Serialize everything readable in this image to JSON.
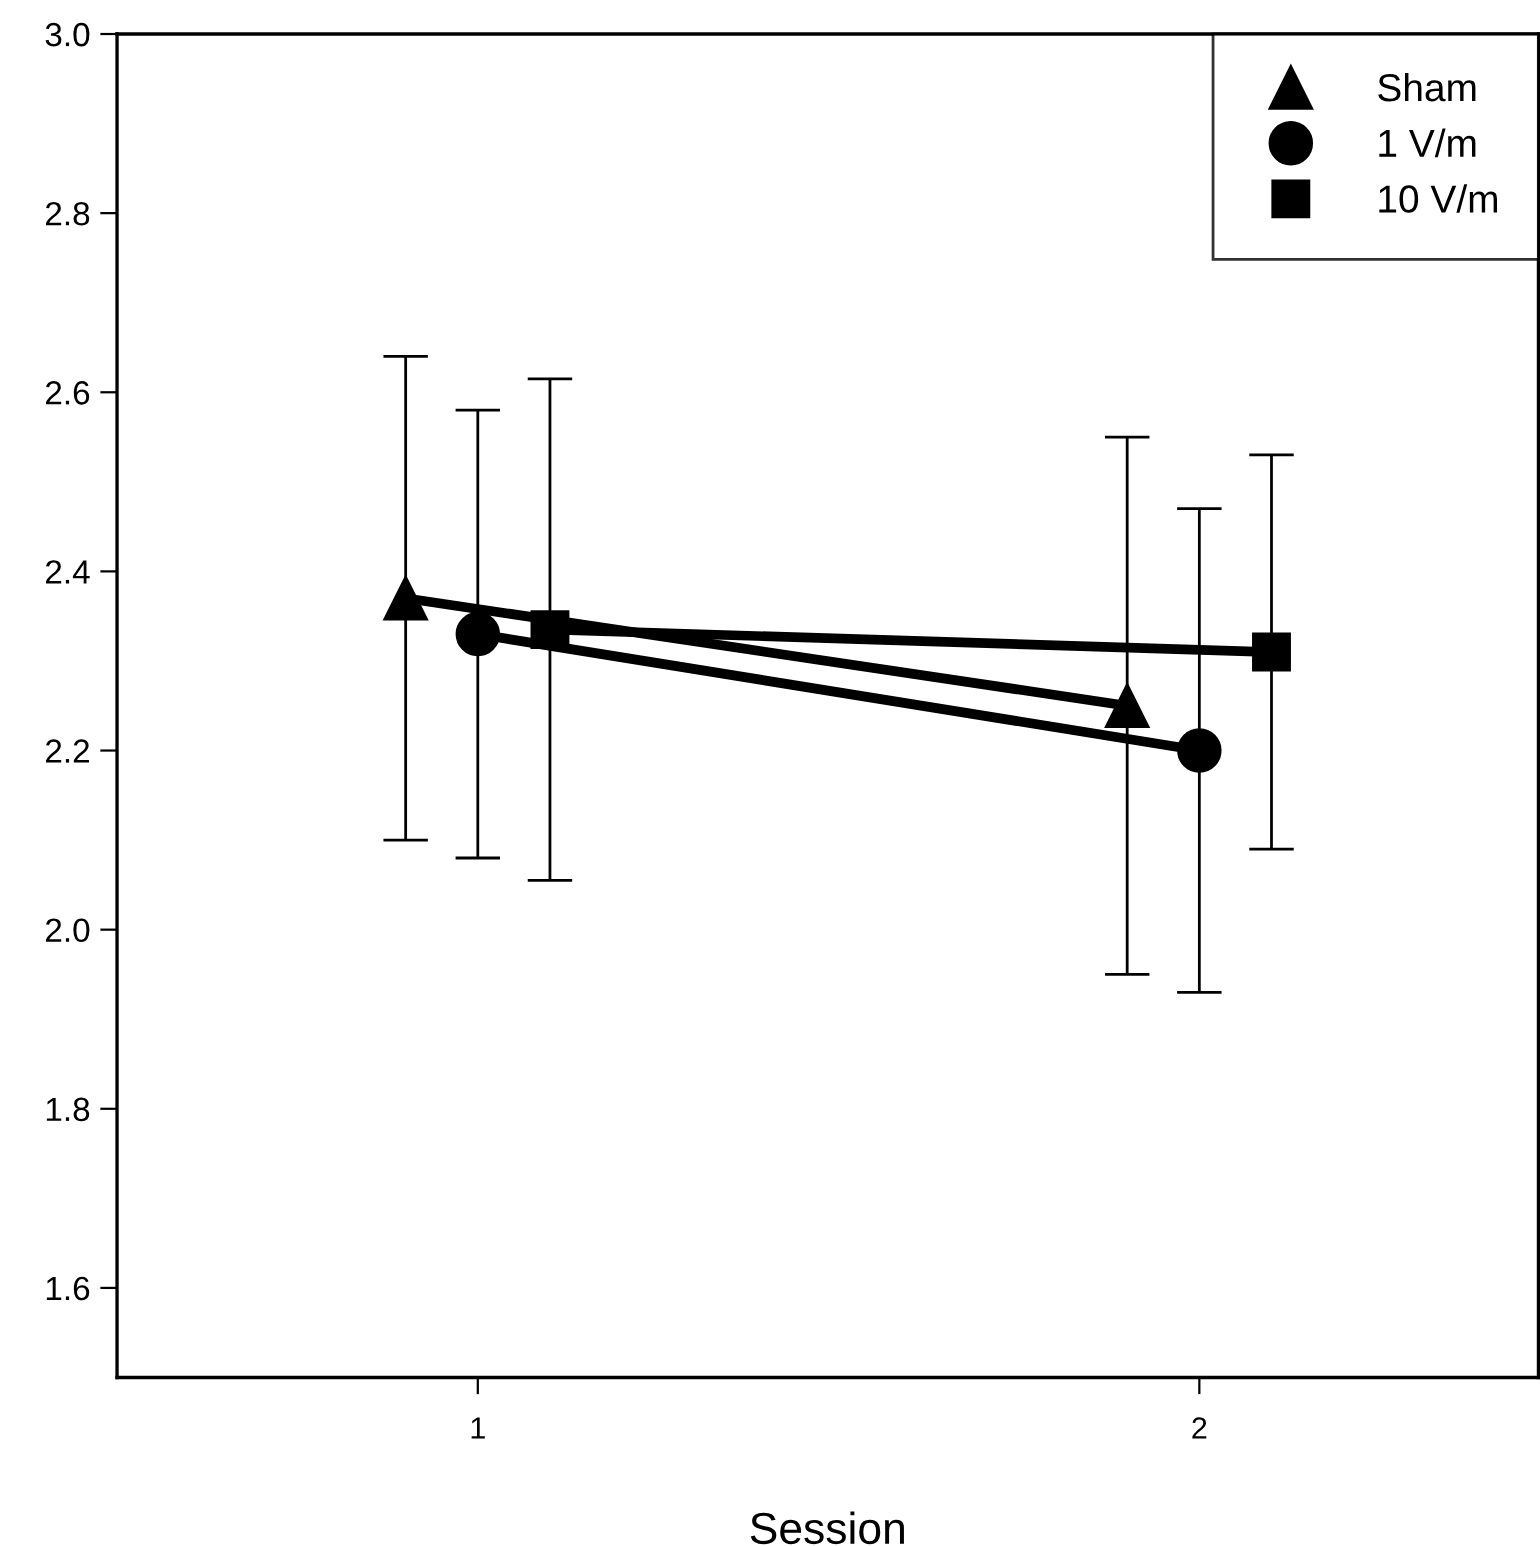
{
  "chart_data": {
    "type": "line",
    "xlabel": "Session",
    "xlim": [
      0.5,
      2.47
    ],
    "xticks": [
      1,
      2
    ],
    "ylim": [
      1.5,
      3.0
    ],
    "yticks": [
      {
        "value": 1.6,
        "label": "1.6"
      },
      {
        "value": 1.8,
        "label": "1.8"
      },
      {
        "value": 2.0,
        "label": "2.0"
      },
      {
        "value": 2.2,
        "label": "2.2"
      },
      {
        "value": 2.4,
        "label": "2.4"
      },
      {
        "value": 2.6,
        "label": "2.6"
      },
      {
        "value": 2.8,
        "label": "2.8"
      },
      {
        "value": 3.0,
        "label": "3.0"
      }
    ],
    "grid": false,
    "legend": "top right",
    "line_style": "solid",
    "series": [
      {
        "name": "Sham",
        "color": "#000000",
        "marker": "triangle",
        "x": [
          0.9,
          1.9
        ],
        "values": [
          2.37,
          2.25
        ],
        "errors": [
          0.27,
          0.3
        ]
      },
      {
        "name": "1 V/m",
        "color": "#000000",
        "marker": "circle",
        "x": [
          1.0,
          2.0
        ],
        "values": [
          2.33,
          2.2
        ],
        "errors": [
          0.25,
          0.27
        ]
      },
      {
        "name": "10 V/m",
        "color": "#000000",
        "marker": "square",
        "x": [
          1.1,
          2.1
        ],
        "values": [
          2.335,
          2.31
        ],
        "errors": [
          0.28,
          0.22
        ]
      }
    ]
  }
}
